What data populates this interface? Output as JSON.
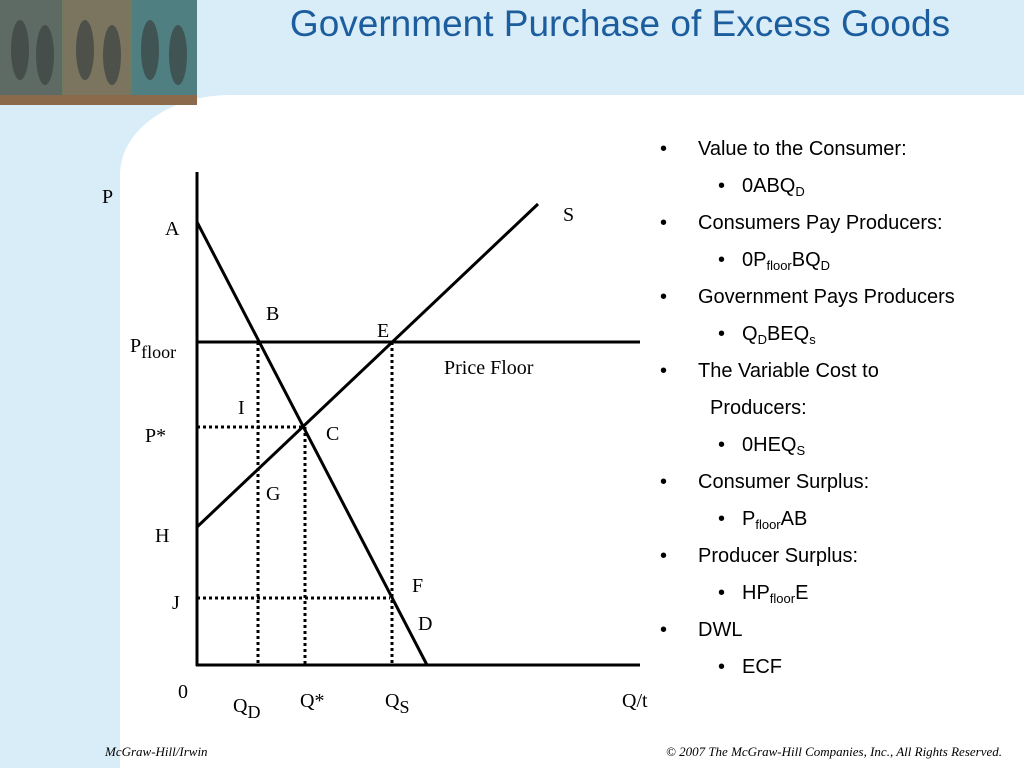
{
  "title": "Government Purchase of Excess Goods",
  "diagram": {
    "labels": {
      "P": [
        {
          "t": "P"
        }
      ],
      "A": [
        {
          "t": "A"
        }
      ],
      "B": [
        {
          "t": "B"
        }
      ],
      "E": [
        {
          "t": "E"
        }
      ],
      "S": [
        {
          "t": "S"
        }
      ],
      "Pfloor": [
        {
          "t": "P"
        },
        {
          "sub": "floor"
        }
      ],
      "price_floor": [
        {
          "t": "Price Floor"
        }
      ],
      "I": [
        {
          "t": "I"
        }
      ],
      "Pstar": [
        {
          "t": "P*"
        }
      ],
      "C": [
        {
          "t": "C"
        }
      ],
      "G": [
        {
          "t": "G"
        }
      ],
      "H": [
        {
          "t": "H"
        }
      ],
      "J": [
        {
          "t": "J"
        }
      ],
      "F": [
        {
          "t": "F"
        }
      ],
      "D": [
        {
          "t": "D"
        }
      ],
      "zero": [
        {
          "t": "0"
        }
      ],
      "QD": [
        {
          "t": "Q"
        },
        {
          "sub": "D"
        }
      ],
      "Qstar": [
        {
          "t": "Q*"
        }
      ],
      "QS": [
        {
          "t": "Q"
        },
        {
          "sub": "S"
        }
      ],
      "Qt": [
        {
          "t": "Q/t"
        }
      ]
    }
  },
  "bullets": [
    {
      "parts": [
        {
          "t": "Value to the Consumer:"
        }
      ],
      "children": [
        {
          "parts": [
            {
              "t": "0ABQ"
            },
            {
              "sub": "D"
            }
          ]
        }
      ]
    },
    {
      "parts": [
        {
          "t": "Consumers Pay Producers:"
        }
      ],
      "children": [
        {
          "parts": [
            {
              "t": "0P"
            },
            {
              "sub": "floor"
            },
            {
              "t": "BQ"
            },
            {
              "sub": "D"
            }
          ]
        }
      ]
    },
    {
      "parts": [
        {
          "t": "Government Pays Producers"
        }
      ],
      "children": [
        {
          "parts": [
            {
              "t": "Q"
            },
            {
              "sub": "D"
            },
            {
              "t": "BEQ"
            },
            {
              "sub": "s"
            }
          ]
        }
      ]
    },
    {
      "parts": [
        {
          "t": "The Variable Cost to"
        },
        {
          "br": "Producers:"
        }
      ],
      "children": [
        {
          "parts": [
            {
              "t": "0HEQ"
            },
            {
              "sub": "S"
            }
          ]
        }
      ]
    },
    {
      "parts": [
        {
          "t": "Consumer Surplus:"
        }
      ],
      "children": [
        {
          "parts": [
            {
              "t": "P"
            },
            {
              "sub": "floor"
            },
            {
              "t": "AB"
            }
          ]
        }
      ]
    },
    {
      "parts": [
        {
          "t": "Producer Surplus:"
        }
      ],
      "children": [
        {
          "parts": [
            {
              "t": "HP"
            },
            {
              "sub": "floor"
            },
            {
              "t": "E"
            }
          ]
        }
      ]
    },
    {
      "parts": [
        {
          "t": "DWL"
        }
      ],
      "children": [
        {
          "parts": [
            {
              "t": "ECF"
            }
          ]
        }
      ]
    }
  ],
  "footer": {
    "left": "McGraw-Hill/Irwin",
    "right": "© 2007 The McGraw-Hill Companies, Inc., All Rights Reserved."
  }
}
